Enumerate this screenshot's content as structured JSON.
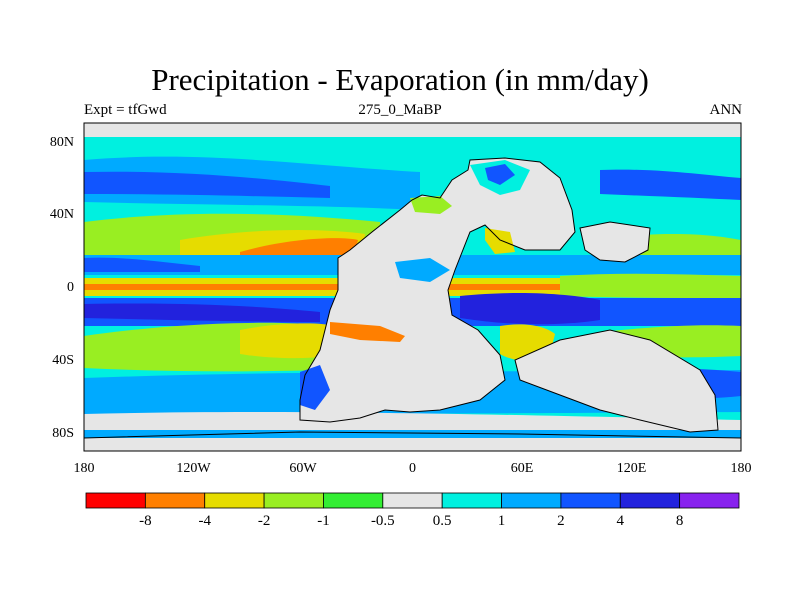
{
  "title": "Precipitation - Evaporation (in mm/day)",
  "subtitle_left": "Expt = tfGwd",
  "subtitle_center": "275_0_MaBP",
  "subtitle_right": "ANN",
  "map": {
    "projection": "cylindrical equidistant",
    "lon_range": [
      -180,
      180
    ],
    "lat_range": [
      -90,
      90
    ],
    "lat_tick_labels": [
      "80N",
      "40N",
      "0",
      "40S",
      "80S"
    ],
    "lat_tick_values": [
      80,
      40,
      0,
      -40,
      -80
    ],
    "lon_tick_labels": [
      "180",
      "120W",
      "60W",
      "0",
      "60E",
      "120E",
      "180"
    ],
    "lon_tick_values": [
      -180,
      -120,
      -60,
      0,
      60,
      120,
      180
    ],
    "colors": {
      "lt_neg8": "#ff0000",
      "neg8_neg4": "#ff7f00",
      "neg4_neg2": "#e6dc00",
      "neg2_neg1": "#99ee22",
      "neg1_neg05": "#33ee33",
      "neutral": "#e6e6e6",
      "p05_1": "#00f0e0",
      "p1_2": "#00aaff",
      "p2_4": "#1155ff",
      "p4_8": "#2222dd",
      "gt8": "#8822ee"
    }
  },
  "colorbar": {
    "labels": [
      "-8",
      "-4",
      "-2",
      "-1",
      "-0.5",
      "0.5",
      "1",
      "2",
      "4",
      "8"
    ],
    "colors": [
      "#ff0000",
      "#ff7f00",
      "#e6dc00",
      "#99ee22",
      "#33ee33",
      "#e6e6e6",
      "#00f0e0",
      "#00aaff",
      "#1155ff",
      "#2222dd",
      "#8822ee"
    ]
  }
}
